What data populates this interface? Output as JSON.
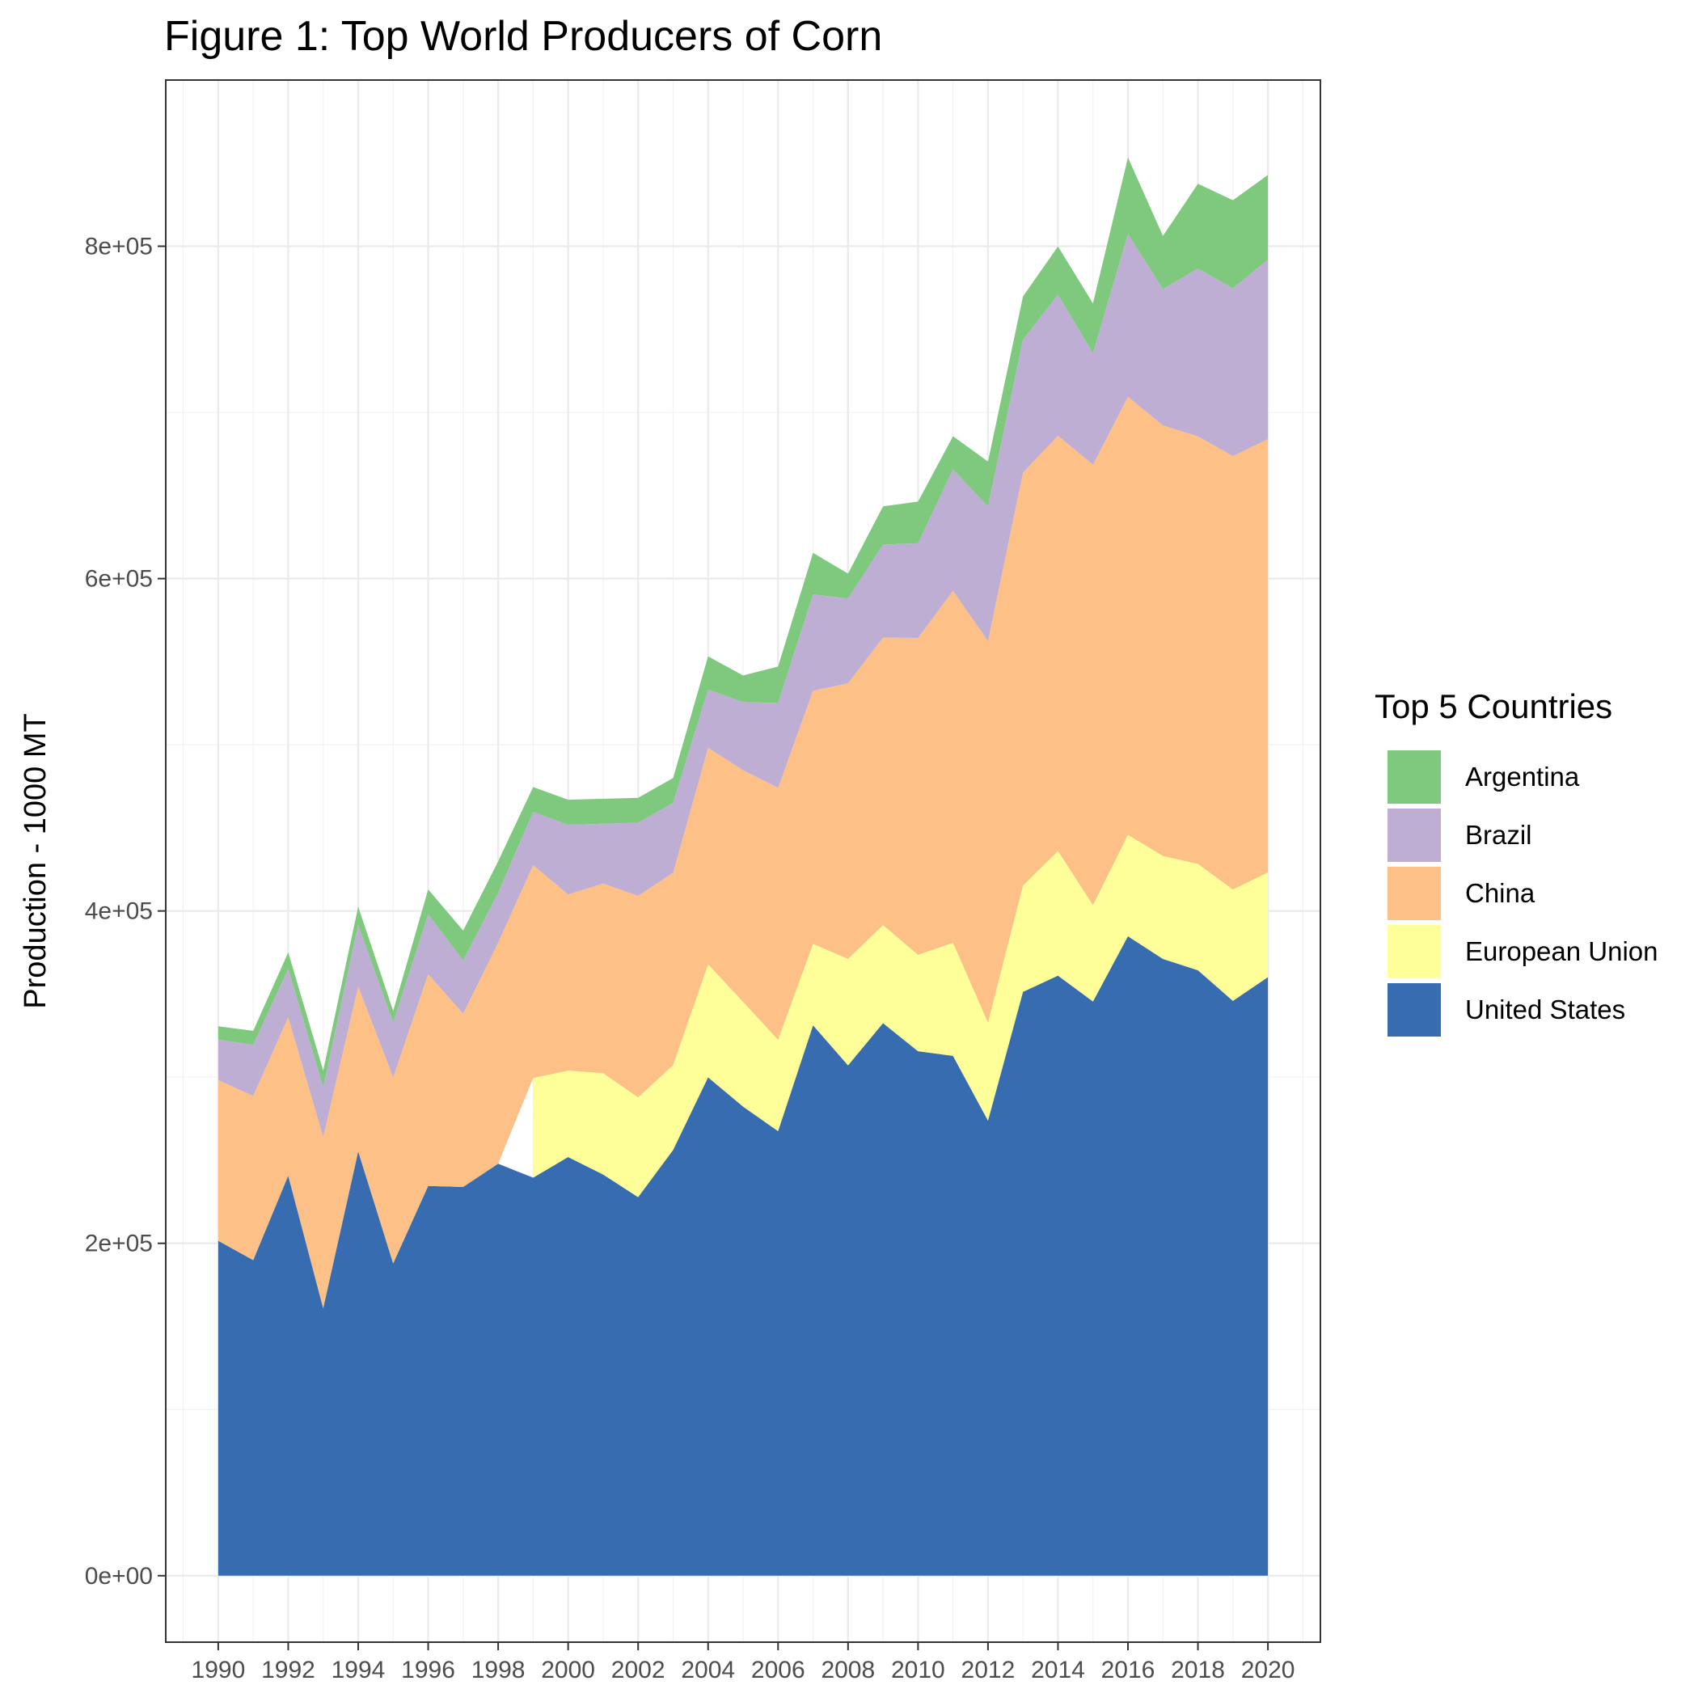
{
  "chart_data": {
    "type": "area",
    "stacked": true,
    "title": "Figure 1: Top World Producers of Corn",
    "xlabel": "",
    "ylabel": "Production - 1000 MT",
    "xlim": [
      1988.5,
      2021.5
    ],
    "ylim": [
      -40000,
      900000
    ],
    "x_ticks": [
      1990,
      1992,
      1994,
      1996,
      1998,
      2000,
      2002,
      2004,
      2006,
      2008,
      2010,
      2012,
      2014,
      2016,
      2018,
      2020
    ],
    "x_tick_labels": [
      "1990",
      "1992",
      "1994",
      "1996",
      "1998",
      "2000",
      "2002",
      "2004",
      "2006",
      "2008",
      "2010",
      "2012",
      "2014",
      "2016",
      "2018",
      "2020"
    ],
    "y_ticks": [
      0,
      200000,
      400000,
      600000,
      800000
    ],
    "y_tick_labels": [
      "0e+00",
      "2e+05",
      "4e+05",
      "6e+05",
      "8e+05"
    ],
    "grid": true,
    "legend": {
      "title": "Top 5 Countries",
      "placement": "right",
      "entries": [
        "Argentina",
        "Brazil",
        "China",
        "European Union",
        "United States"
      ]
    },
    "x": [
      1990,
      1991,
      1992,
      1993,
      1994,
      1995,
      1996,
      1997,
      1998,
      1999,
      2000,
      2001,
      2002,
      2003,
      2004,
      2005,
      2006,
      2007,
      2008,
      2009,
      2010,
      2011,
      2012,
      2013,
      2014,
      2015,
      2016,
      2017,
      2018,
      2019,
      2020
    ],
    "series": [
      {
        "name": "United States",
        "color": "#386CB0",
        "values": [
          201500,
          189900,
          240700,
          160900,
          255300,
          187900,
          234500,
          233900,
          247900,
          239500,
          251900,
          241400,
          227800,
          256200,
          299900,
          282300,
          267500,
          331200,
          307100,
          332500,
          315600,
          312800,
          273800,
          351300,
          361100,
          345500,
          384800,
          371100,
          364300,
          345900,
          360200
        ]
      },
      {
        "name": "European Union",
        "color": "#FFFF99",
        "values": [
          null,
          null,
          null,
          null,
          null,
          null,
          null,
          null,
          null,
          60000,
          52000,
          61000,
          60000,
          51000,
          68000,
          63000,
          55000,
          49000,
          64000,
          59000,
          58000,
          68000,
          59000,
          64000,
          75000,
          58000,
          61000,
          62000,
          64000,
          67000,
          63000
        ]
      },
      {
        "name": "China",
        "color": "#FDC086",
        "values": [
          96800,
          98800,
          95400,
          103100,
          99300,
          112000,
          127500,
          104300,
          133000,
          128100,
          106000,
          114100,
          121300,
          115800,
          130300,
          139400,
          151600,
          152300,
          165900,
          173000,
          190700,
          211900,
          229600,
          248500,
          249800,
          265100,
          263600,
          259100,
          257300,
          260800,
          260700
        ]
      },
      {
        "name": "Brazil",
        "color": "#BEAED4",
        "values": [
          24300,
          30800,
          29000,
          30000,
          37000,
          33000,
          36000,
          32000,
          30000,
          32000,
          42000,
          36000,
          44000,
          42000,
          35000,
          41000,
          51000,
          58000,
          51000,
          56000,
          57000,
          73000,
          81000,
          80000,
          85000,
          67000,
          98000,
          82000,
          101000,
          101000,
          108000
        ]
      },
      {
        "name": "Argentina",
        "color": "#7FC97F",
        "values": [
          8000,
          8400,
          10000,
          10000,
          11000,
          7000,
          15000,
          18000,
          19000,
          15000,
          15000,
          15000,
          15000,
          15000,
          20000,
          16000,
          22000,
          25000,
          15000,
          23000,
          25000,
          20000,
          27000,
          26000,
          29000,
          30000,
          46000,
          32000,
          51000,
          53000,
          51000
        ]
      }
    ]
  }
}
